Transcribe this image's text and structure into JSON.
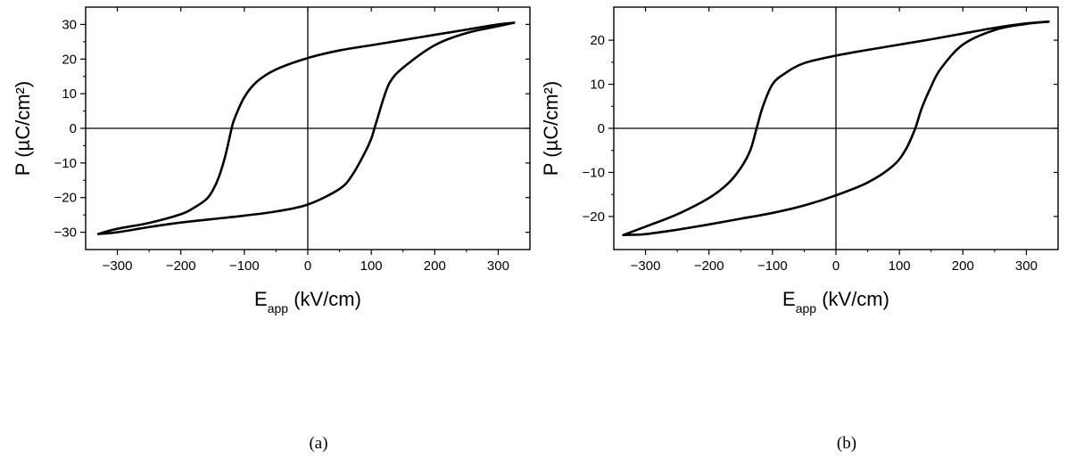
{
  "chart_data": [
    {
      "type": "line",
      "panel_label": "(a)",
      "xlabel_main": "E",
      "xlabel_sub": "app",
      "xlabel_unit": " (kV/cm)",
      "ylabel": "P (µC/cm²)",
      "xlim": [
        -350,
        350
      ],
      "ylim": [
        -35,
        35
      ],
      "x_ticks": [
        -300,
        -200,
        -100,
        0,
        100,
        200,
        300
      ],
      "y_ticks": [
        -30,
        -20,
        -10,
        0,
        10,
        20,
        30
      ],
      "grid": false,
      "origin_axes": true,
      "series": [
        {
          "branch": "descending",
          "x": [
            325,
            300,
            250,
            200,
            150,
            100,
            50,
            0,
            -50,
            -80,
            -100,
            -115,
            -120,
            -130,
            -140,
            -150,
            -160,
            -180,
            -200,
            -250,
            -300,
            -330
          ],
          "y": [
            30.5,
            30,
            28.5,
            27,
            25.5,
            24,
            22.5,
            20.3,
            17,
            13.5,
            9,
            3,
            0,
            -8,
            -14,
            -18,
            -20.5,
            -23,
            -24.8,
            -27.3,
            -29,
            -30.5
          ]
        },
        {
          "branch": "ascending",
          "x": [
            -330,
            -300,
            -250,
            -200,
            -150,
            -100,
            -50,
            0,
            50,
            70,
            90,
            100,
            105,
            110,
            120,
            130,
            150,
            200,
            250,
            300,
            325
          ],
          "y": [
            -30.5,
            -30,
            -28.5,
            -27.2,
            -26.2,
            -25.2,
            -24,
            -22,
            -17.5,
            -13.5,
            -7,
            -3,
            0,
            3,
            9,
            13.5,
            17.5,
            24,
            27.5,
            29.5,
            30.5
          ]
        }
      ]
    },
    {
      "type": "line",
      "panel_label": "(b)",
      "xlabel_main": "E",
      "xlabel_sub": "app",
      "xlabel_unit": " (kV/cm)",
      "ylabel": "P (µC/cm²)",
      "xlim": [
        -350,
        350
      ],
      "ylim": [
        -27.5,
        27.5
      ],
      "x_ticks": [
        -300,
        -200,
        -100,
        0,
        100,
        200,
        300
      ],
      "y_ticks": [
        -20,
        -10,
        0,
        10,
        20
      ],
      "grid": false,
      "origin_axes": true,
      "series": [
        {
          "branch": "descending",
          "x": [
            335,
            300,
            250,
            200,
            150,
            100,
            50,
            0,
            -50,
            -80,
            -100,
            -115,
            -125,
            -135,
            -150,
            -170,
            -200,
            -250,
            -300,
            -335
          ],
          "y": [
            24.2,
            23.8,
            22.8,
            21.5,
            20.2,
            19,
            17.8,
            16.5,
            14.8,
            12.5,
            10,
            5,
            0,
            -5,
            -9,
            -12.5,
            -15.8,
            -19.5,
            -22.3,
            -24.2
          ]
        },
        {
          "branch": "ascending",
          "x": [
            -335,
            -300,
            -250,
            -200,
            -150,
            -100,
            -50,
            0,
            50,
            90,
            110,
            125,
            135,
            150,
            165,
            200,
            250,
            300,
            335
          ],
          "y": [
            -24.2,
            -24,
            -23,
            -21.8,
            -20.5,
            -19.2,
            -17.5,
            -15.2,
            -12.3,
            -8.5,
            -4.8,
            0,
            4.5,
            9.5,
            13.5,
            19,
            22.3,
            23.7,
            24.2
          ]
        }
      ]
    }
  ]
}
